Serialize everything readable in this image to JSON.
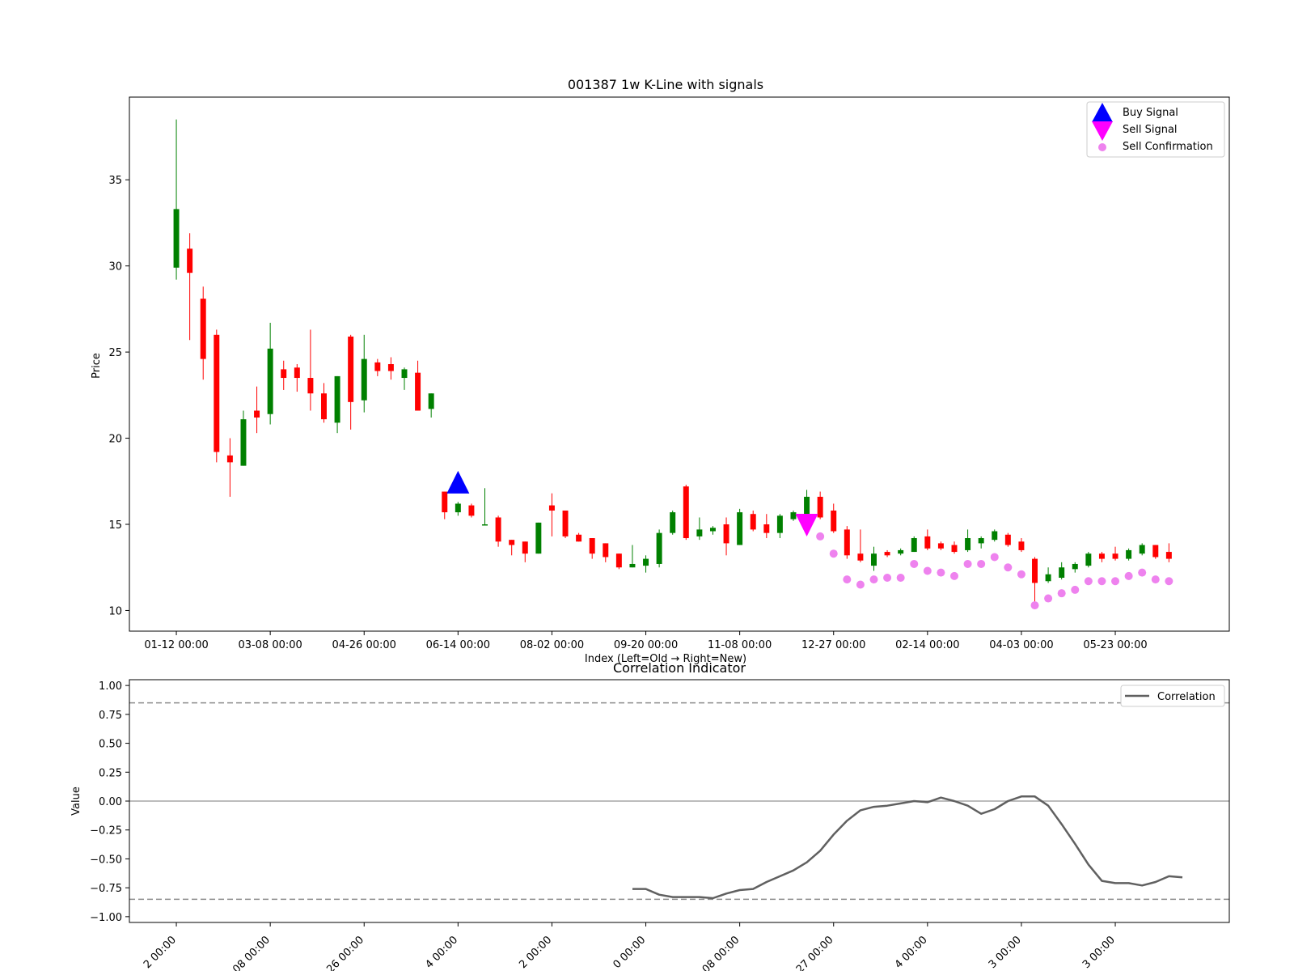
{
  "chart_data": [
    {
      "type": "candlestick",
      "title": "001387 1w K-Line with signals",
      "xlabel": "Index (Left=Old → Right=New)",
      "ylabel": "Price",
      "ylim": [
        8.8,
        39.8
      ],
      "xlim": [
        -3.5,
        78.5
      ],
      "yticks": [
        10,
        15,
        20,
        25,
        30,
        35
      ],
      "xtick_labels": [
        {
          "i": 0,
          "label": "01-12 00:00"
        },
        {
          "i": 7,
          "label": "03-08 00:00"
        },
        {
          "i": 14,
          "label": "04-26 00:00"
        },
        {
          "i": 21,
          "label": "06-14 00:00"
        },
        {
          "i": 28,
          "label": "08-02 00:00"
        },
        {
          "i": 35,
          "label": "09-20 00:00"
        },
        {
          "i": 42,
          "label": "11-08 00:00"
        },
        {
          "i": 49,
          "label": "12-27 00:00"
        },
        {
          "i": 56,
          "label": "02-14 00:00"
        },
        {
          "i": 63,
          "label": "04-03 00:00"
        },
        {
          "i": 70,
          "label": "05-23 00:00"
        }
      ],
      "legend_position": "top-right",
      "colors": {
        "up": "#008000",
        "down": "#ff0000",
        "buy": "#0000ff",
        "sell": "#ff00ff",
        "confirm": "#ee82ee"
      },
      "candles": [
        {
          "i": 0,
          "o": 29.9,
          "c": 33.3,
          "h": 38.5,
          "l": 29.2
        },
        {
          "i": 1,
          "o": 31.0,
          "c": 29.6,
          "h": 31.9,
          "l": 25.7
        },
        {
          "i": 2,
          "o": 28.1,
          "c": 24.6,
          "h": 28.8,
          "l": 23.4
        },
        {
          "i": 3,
          "o": 26.0,
          "c": 19.2,
          "h": 26.3,
          "l": 18.6
        },
        {
          "i": 4,
          "o": 19.0,
          "c": 18.6,
          "h": 20.0,
          "l": 16.6
        },
        {
          "i": 5,
          "o": 18.4,
          "c": 21.1,
          "h": 21.6,
          "l": 18.4
        },
        {
          "i": 6,
          "o": 21.6,
          "c": 21.2,
          "h": 23.0,
          "l": 20.3
        },
        {
          "i": 7,
          "o": 21.4,
          "c": 25.2,
          "h": 26.7,
          "l": 20.8
        },
        {
          "i": 8,
          "o": 24.0,
          "c": 23.5,
          "h": 24.5,
          "l": 22.8
        },
        {
          "i": 9,
          "o": 24.1,
          "c": 23.5,
          "h": 24.3,
          "l": 22.7
        },
        {
          "i": 10,
          "o": 23.5,
          "c": 22.6,
          "h": 26.3,
          "l": 21.6
        },
        {
          "i": 11,
          "o": 22.6,
          "c": 21.1,
          "h": 23.2,
          "l": 20.9
        },
        {
          "i": 12,
          "o": 20.9,
          "c": 23.6,
          "h": 23.6,
          "l": 20.3
        },
        {
          "i": 13,
          "o": 25.9,
          "c": 22.1,
          "h": 26.0,
          "l": 20.5
        },
        {
          "i": 14,
          "o": 22.2,
          "c": 24.6,
          "h": 26.0,
          "l": 21.5
        },
        {
          "i": 15,
          "o": 24.4,
          "c": 23.9,
          "h": 24.6,
          "l": 23.6
        },
        {
          "i": 16,
          "o": 24.3,
          "c": 23.9,
          "h": 24.7,
          "l": 23.4
        },
        {
          "i": 17,
          "o": 23.5,
          "c": 24.0,
          "h": 24.1,
          "l": 22.8
        },
        {
          "i": 18,
          "o": 23.8,
          "c": 21.6,
          "h": 24.5,
          "l": 21.6
        },
        {
          "i": 19,
          "o": 21.7,
          "c": 22.6,
          "h": 22.6,
          "l": 21.2
        },
        {
          "i": 20,
          "o": 16.9,
          "c": 15.7,
          "h": 16.9,
          "l": 15.3
        },
        {
          "i": 21,
          "o": 15.7,
          "c": 16.2,
          "h": 16.3,
          "l": 15.5
        },
        {
          "i": 22,
          "o": 16.1,
          "c": 15.5,
          "h": 16.2,
          "l": 15.4
        },
        {
          "i": 23,
          "o": 15.0,
          "c": 15.0,
          "h": 17.1,
          "l": 15.0
        },
        {
          "i": 24,
          "o": 15.4,
          "c": 14.0,
          "h": 15.5,
          "l": 13.7
        },
        {
          "i": 25,
          "o": 14.1,
          "c": 13.8,
          "h": 14.1,
          "l": 13.2
        },
        {
          "i": 26,
          "o": 14.0,
          "c": 13.3,
          "h": 14.0,
          "l": 12.8
        },
        {
          "i": 27,
          "o": 13.3,
          "c": 15.1,
          "h": 15.1,
          "l": 13.3
        },
        {
          "i": 28,
          "o": 16.1,
          "c": 15.8,
          "h": 16.8,
          "l": 14.3
        },
        {
          "i": 29,
          "o": 15.8,
          "c": 14.3,
          "h": 15.8,
          "l": 14.2
        },
        {
          "i": 30,
          "o": 14.4,
          "c": 14.0,
          "h": 14.5,
          "l": 14.0
        },
        {
          "i": 31,
          "o": 14.2,
          "c": 13.3,
          "h": 14.2,
          "l": 13.0
        },
        {
          "i": 32,
          "o": 13.9,
          "c": 13.1,
          "h": 13.9,
          "l": 12.8
        },
        {
          "i": 33,
          "o": 13.3,
          "c": 12.5,
          "h": 13.3,
          "l": 12.4
        },
        {
          "i": 34,
          "o": 12.5,
          "c": 12.7,
          "h": 13.8,
          "l": 12.5
        },
        {
          "i": 35,
          "o": 12.6,
          "c": 13.0,
          "h": 13.2,
          "l": 12.2
        },
        {
          "i": 36,
          "o": 12.7,
          "c": 14.5,
          "h": 14.7,
          "l": 12.5
        },
        {
          "i": 37,
          "o": 14.5,
          "c": 15.7,
          "h": 15.8,
          "l": 14.4
        },
        {
          "i": 38,
          "o": 17.2,
          "c": 14.2,
          "h": 17.3,
          "l": 14.1
        },
        {
          "i": 39,
          "o": 14.3,
          "c": 14.7,
          "h": 15.4,
          "l": 14.1
        },
        {
          "i": 40,
          "o": 14.6,
          "c": 14.8,
          "h": 14.9,
          "l": 14.4
        },
        {
          "i": 41,
          "o": 15.0,
          "c": 13.9,
          "h": 15.4,
          "l": 13.2
        },
        {
          "i": 42,
          "o": 13.8,
          "c": 15.7,
          "h": 15.9,
          "l": 13.8
        },
        {
          "i": 43,
          "o": 15.6,
          "c": 14.7,
          "h": 15.8,
          "l": 14.6
        },
        {
          "i": 44,
          "o": 15.0,
          "c": 14.5,
          "h": 15.6,
          "l": 14.2
        },
        {
          "i": 45,
          "o": 14.5,
          "c": 15.5,
          "h": 15.6,
          "l": 14.2
        },
        {
          "i": 46,
          "o": 15.3,
          "c": 15.7,
          "h": 15.8,
          "l": 15.2
        },
        {
          "i": 47,
          "o": 15.5,
          "c": 16.6,
          "h": 17.0,
          "l": 15.2
        },
        {
          "i": 48,
          "o": 16.6,
          "c": 15.4,
          "h": 16.9,
          "l": 15.3
        },
        {
          "i": 49,
          "o": 15.8,
          "c": 14.6,
          "h": 16.2,
          "l": 14.5
        },
        {
          "i": 50,
          "o": 14.7,
          "c": 13.2,
          "h": 14.9,
          "l": 13.0
        },
        {
          "i": 51,
          "o": 13.3,
          "c": 12.9,
          "h": 14.7,
          "l": 12.8
        },
        {
          "i": 52,
          "o": 12.6,
          "c": 13.3,
          "h": 13.7,
          "l": 12.3
        },
        {
          "i": 53,
          "o": 13.4,
          "c": 13.2,
          "h": 13.5,
          "l": 13.1
        },
        {
          "i": 54,
          "o": 13.3,
          "c": 13.5,
          "h": 13.6,
          "l": 13.2
        },
        {
          "i": 55,
          "o": 13.4,
          "c": 14.2,
          "h": 14.3,
          "l": 13.4
        },
        {
          "i": 56,
          "o": 14.3,
          "c": 13.6,
          "h": 14.7,
          "l": 13.5
        },
        {
          "i": 57,
          "o": 13.9,
          "c": 13.6,
          "h": 14.0,
          "l": 13.5
        },
        {
          "i": 58,
          "o": 13.8,
          "c": 13.4,
          "h": 14.0,
          "l": 13.3
        },
        {
          "i": 59,
          "o": 13.5,
          "c": 14.2,
          "h": 14.7,
          "l": 13.4
        },
        {
          "i": 60,
          "o": 13.9,
          "c": 14.2,
          "h": 14.3,
          "l": 13.6
        },
        {
          "i": 61,
          "o": 14.1,
          "c": 14.6,
          "h": 14.7,
          "l": 14.0
        },
        {
          "i": 62,
          "o": 14.4,
          "c": 13.8,
          "h": 14.5,
          "l": 13.7
        },
        {
          "i": 63,
          "o": 14.0,
          "c": 13.5,
          "h": 14.2,
          "l": 13.4
        },
        {
          "i": 64,
          "o": 13.0,
          "c": 11.6,
          "h": 13.1,
          "l": 10.4
        },
        {
          "i": 65,
          "o": 11.7,
          "c": 12.1,
          "h": 12.5,
          "l": 11.6
        },
        {
          "i": 66,
          "o": 11.9,
          "c": 12.5,
          "h": 12.8,
          "l": 11.8
        },
        {
          "i": 67,
          "o": 12.4,
          "c": 12.7,
          "h": 12.8,
          "l": 12.2
        },
        {
          "i": 68,
          "o": 12.6,
          "c": 13.3,
          "h": 13.4,
          "l": 12.5
        },
        {
          "i": 69,
          "o": 13.3,
          "c": 13.0,
          "h": 13.4,
          "l": 12.8
        },
        {
          "i": 70,
          "o": 13.3,
          "c": 13.0,
          "h": 13.7,
          "l": 12.9
        },
        {
          "i": 71,
          "o": 13.0,
          "c": 13.5,
          "h": 13.6,
          "l": 12.9
        },
        {
          "i": 72,
          "o": 13.3,
          "c": 13.8,
          "h": 13.9,
          "l": 13.2
        },
        {
          "i": 73,
          "o": 13.8,
          "c": 13.1,
          "h": 13.8,
          "l": 13.0
        },
        {
          "i": 74,
          "o": 13.4,
          "c": 13.0,
          "h": 13.9,
          "l": 12.8
        }
      ],
      "buy_signals": [
        {
          "i": 21,
          "y": 17.4
        }
      ],
      "sell_signals": [
        {
          "i": 47,
          "y": 15.0
        }
      ],
      "sell_confirmations": [
        {
          "i": 48,
          "y": 14.3
        },
        {
          "i": 49,
          "y": 13.3
        },
        {
          "i": 50,
          "y": 11.8
        },
        {
          "i": 51,
          "y": 11.5
        },
        {
          "i": 52,
          "y": 11.8
        },
        {
          "i": 53,
          "y": 11.9
        },
        {
          "i": 54,
          "y": 11.9
        },
        {
          "i": 55,
          "y": 12.7
        },
        {
          "i": 56,
          "y": 12.3
        },
        {
          "i": 57,
          "y": 12.2
        },
        {
          "i": 58,
          "y": 12.0
        },
        {
          "i": 59,
          "y": 12.7
        },
        {
          "i": 60,
          "y": 12.7
        },
        {
          "i": 61,
          "y": 13.1
        },
        {
          "i": 62,
          "y": 12.5
        },
        {
          "i": 63,
          "y": 12.1
        },
        {
          "i": 64,
          "y": 10.3
        },
        {
          "i": 65,
          "y": 10.7
        },
        {
          "i": 66,
          "y": 11.0
        },
        {
          "i": 67,
          "y": 11.2
        },
        {
          "i": 68,
          "y": 11.7
        },
        {
          "i": 69,
          "y": 11.7
        },
        {
          "i": 70,
          "y": 11.7
        },
        {
          "i": 71,
          "y": 12.0
        },
        {
          "i": 72,
          "y": 12.2
        },
        {
          "i": 73,
          "y": 11.8
        },
        {
          "i": 74,
          "y": 11.7
        }
      ],
      "legend": [
        "Buy Signal",
        "Sell Signal",
        "Sell Confirmation"
      ]
    },
    {
      "type": "line",
      "title": "Correlation Indicator",
      "ylabel": "Value",
      "ylim": [
        -1.05,
        1.05
      ],
      "xlim": [
        -3.5,
        78.5
      ],
      "yticks": [
        -1.0,
        -0.75,
        -0.5,
        -0.25,
        0.0,
        0.25,
        0.5,
        0.75,
        1.0
      ],
      "ytick_labels": [
        "−1.00",
        "−0.75",
        "−0.50",
        "−0.25",
        "0.00",
        "0.25",
        "0.50",
        "0.75",
        "1.00"
      ],
      "xtick_labels": [
        {
          "i": 0,
          "label": "2 00:00"
        },
        {
          "i": 7,
          "label": "08 00:00"
        },
        {
          "i": 14,
          "label": "26 00:00"
        },
        {
          "i": 21,
          "label": "4 00:00"
        },
        {
          "i": 28,
          "label": "2 00:00"
        },
        {
          "i": 35,
          "label": "0 00:00"
        },
        {
          "i": 42,
          "label": "08 00:00"
        },
        {
          "i": 49,
          "label": "27 00:00"
        },
        {
          "i": 56,
          "label": "4 00:00"
        },
        {
          "i": 63,
          "label": "3 00:00"
        },
        {
          "i": 70,
          "label": "3 00:00"
        }
      ],
      "thresholds": [
        0.85,
        -0.85
      ],
      "zero_line": 0.0,
      "legend_position": "top-right",
      "series": [
        {
          "name": "Correlation",
          "color": "#606060",
          "start_index": 34,
          "values": [
            -0.76,
            -0.76,
            -0.81,
            -0.83,
            -0.83,
            -0.83,
            -0.84,
            -0.8,
            -0.77,
            -0.76,
            -0.7,
            -0.65,
            -0.6,
            -0.53,
            -0.43,
            -0.29,
            -0.17,
            -0.08,
            -0.05,
            -0.04,
            -0.02,
            0.0,
            -0.01,
            0.03,
            0.0,
            -0.04,
            -0.11,
            -0.07,
            0.0,
            0.04,
            0.04,
            -0.04,
            -0.2,
            -0.37,
            -0.55,
            -0.69,
            -0.71,
            -0.71,
            -0.73,
            -0.7,
            -0.65,
            -0.66
          ]
        }
      ]
    }
  ]
}
